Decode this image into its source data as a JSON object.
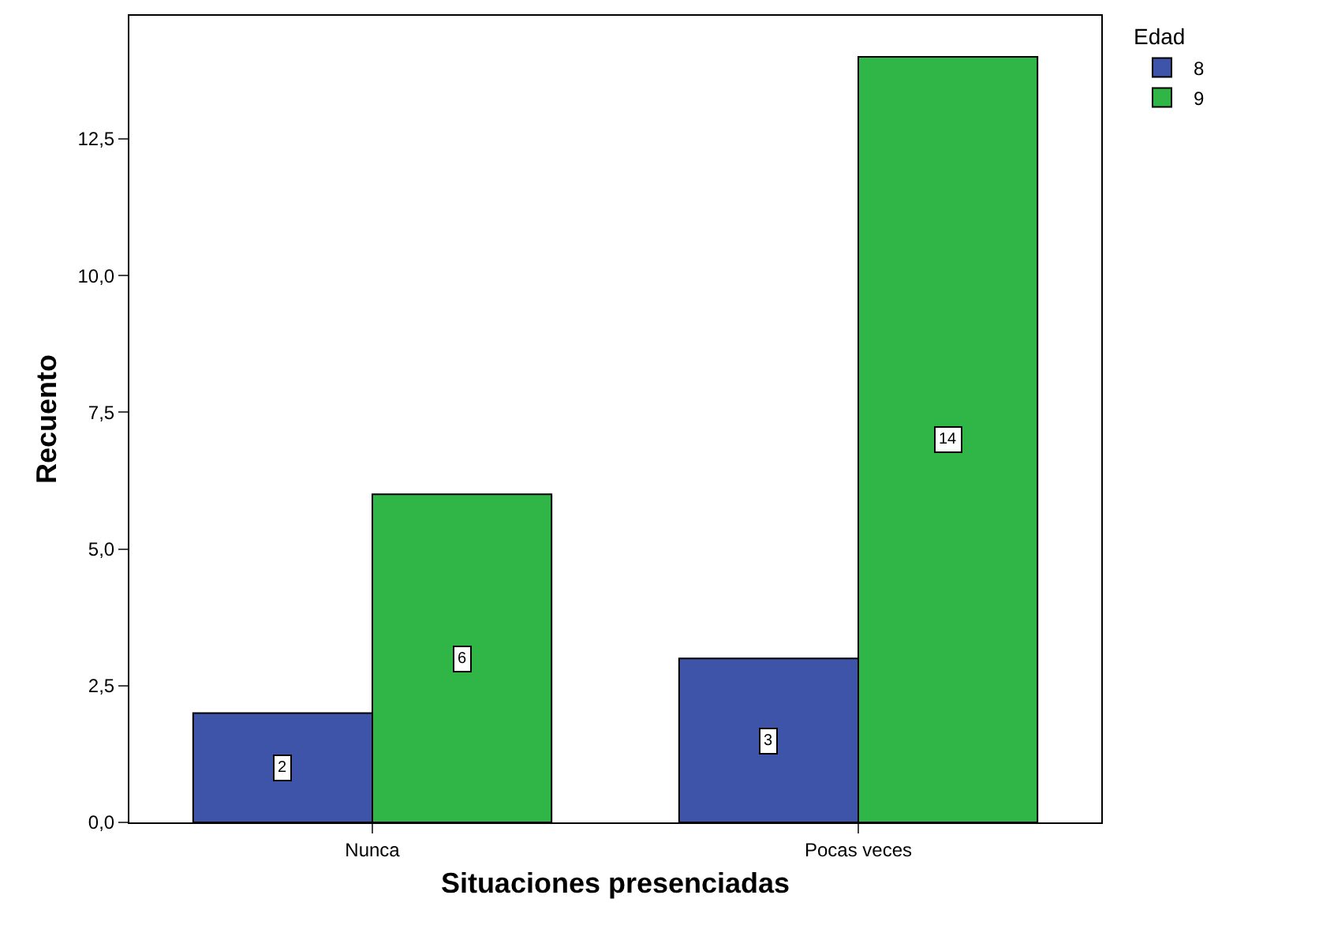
{
  "chart_data": {
    "type": "bar",
    "xlabel": "Situaciones presenciadas",
    "ylabel": "Recuento",
    "legend_title": "Edad",
    "categories": [
      "Nunca",
      "Pocas veces"
    ],
    "series": [
      {
        "name": "8",
        "color": "#3d54a8",
        "values": [
          2,
          3
        ]
      },
      {
        "name": "9",
        "color": "#2fb646",
        "values": [
          6,
          14
        ]
      }
    ],
    "ylim": [
      0,
      14.75
    ],
    "yticks": [
      {
        "value": 0,
        "label": "0,0"
      },
      {
        "value": 2.5,
        "label": "2,5"
      },
      {
        "value": 5,
        "label": "5,0"
      },
      {
        "value": 7.5,
        "label": "7,5"
      },
      {
        "value": 10,
        "label": "10,0"
      },
      {
        "value": 12.5,
        "label": "12,5"
      }
    ],
    "grid": false,
    "legend": "top right",
    "data_labels": true
  }
}
